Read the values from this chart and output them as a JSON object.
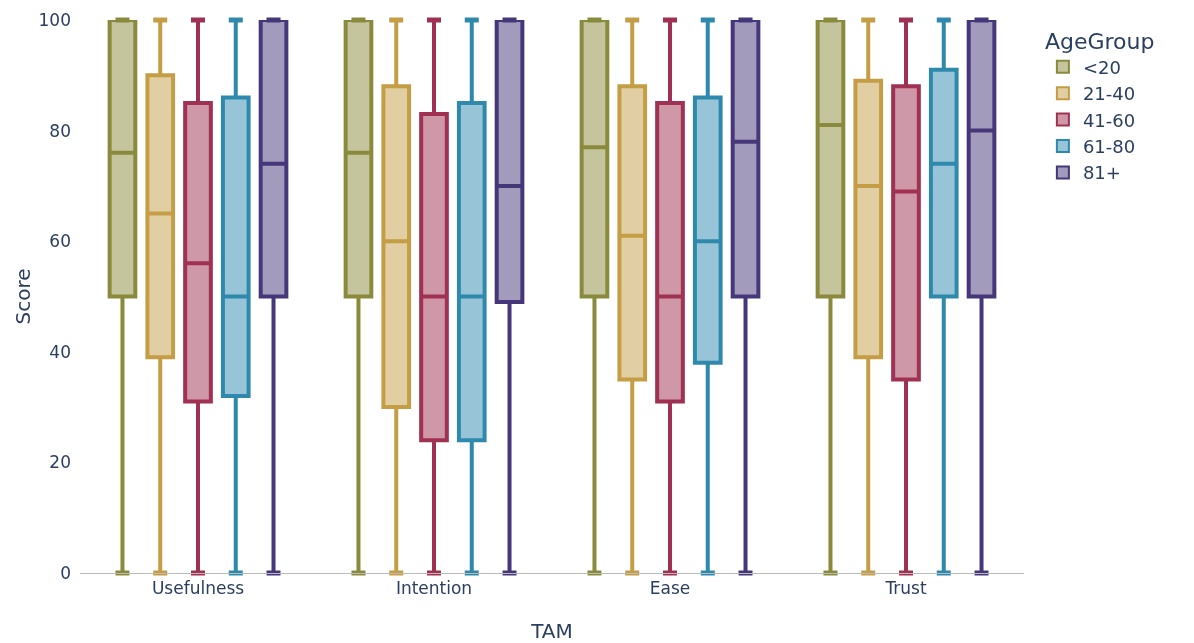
{
  "chart_data": {
    "type": "box",
    "xlabel": "TAM",
    "ylabel": "Score",
    "legend_title": "AgeGroup",
    "legend": "top right",
    "grid": false,
    "categories": [
      "Usefulness",
      "Intention",
      "Ease",
      "Trust"
    ],
    "ylim": [
      0,
      100
    ],
    "yticks": [
      0,
      20,
      40,
      60,
      80,
      100
    ],
    "series": [
      {
        "name": "<20",
        "color": "#8a8a3c",
        "boxes": [
          {
            "low": 0,
            "q1": 50,
            "median": 76,
            "q3": 100,
            "high": 100
          },
          {
            "low": 0,
            "q1": 50,
            "median": 76,
            "q3": 100,
            "high": 100
          },
          {
            "low": 0,
            "q1": 50,
            "median": 77,
            "q3": 100,
            "high": 100
          },
          {
            "low": 0,
            "q1": 50,
            "median": 81,
            "q3": 100,
            "high": 100
          }
        ]
      },
      {
        "name": "21-40",
        "color": "#c49d45",
        "boxes": [
          {
            "low": 0,
            "q1": 39,
            "median": 65,
            "q3": 90,
            "high": 100
          },
          {
            "low": 0,
            "q1": 30,
            "median": 60,
            "q3": 88,
            "high": 100
          },
          {
            "low": 0,
            "q1": 35,
            "median": 61,
            "q3": 88,
            "high": 100
          },
          {
            "low": 0,
            "q1": 39,
            "median": 70,
            "q3": 89,
            "high": 100
          }
        ]
      },
      {
        "name": "41-60",
        "color": "#a03152",
        "boxes": [
          {
            "low": 0,
            "q1": 31,
            "median": 56,
            "q3": 85,
            "high": 100
          },
          {
            "low": 0,
            "q1": 24,
            "median": 50,
            "q3": 83,
            "high": 100
          },
          {
            "low": 0,
            "q1": 31,
            "median": 50,
            "q3": 85,
            "high": 100
          },
          {
            "low": 0,
            "q1": 35,
            "median": 69,
            "q3": 88,
            "high": 100
          }
        ]
      },
      {
        "name": "61-80",
        "color": "#2f89ad",
        "boxes": [
          {
            "low": 0,
            "q1": 32,
            "median": 50,
            "q3": 86,
            "high": 100
          },
          {
            "low": 0,
            "q1": 24,
            "median": 50,
            "q3": 85,
            "high": 100
          },
          {
            "low": 0,
            "q1": 38,
            "median": 60,
            "q3": 86,
            "high": 100
          },
          {
            "low": 0,
            "q1": 50,
            "median": 74,
            "q3": 91,
            "high": 100
          }
        ]
      },
      {
        "name": "81+",
        "color": "#46377a",
        "boxes": [
          {
            "low": 0,
            "q1": 50,
            "median": 74,
            "q3": 100,
            "high": 100
          },
          {
            "low": 0,
            "q1": 49,
            "median": 70,
            "q3": 100,
            "high": 100
          },
          {
            "low": 0,
            "q1": 50,
            "median": 78,
            "q3": 100,
            "high": 100
          },
          {
            "low": 0,
            "q1": 50,
            "median": 80,
            "q3": 100,
            "high": 100
          }
        ]
      }
    ]
  }
}
